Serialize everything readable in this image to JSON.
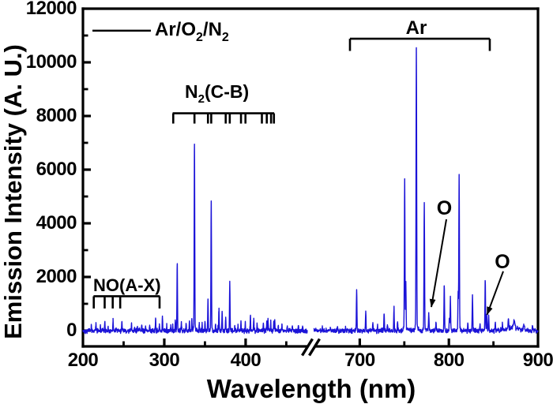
{
  "figure": {
    "background": "#ffffff",
    "axis_color": "#000000",
    "trace_color": "#1b13d8"
  },
  "chart_data": {
    "type": "line",
    "title": "",
    "xlabel": "Wavelength (nm)",
    "ylabel": "Emission Intensity (A. U.)",
    "x_unit": "nm",
    "ylim": [
      -530,
      12000
    ],
    "grid": false,
    "legend_position": "top-left-inside",
    "y_ticks_major": [
      0,
      2000,
      4000,
      6000,
      8000,
      10000
    ],
    "y_ticks_minor": [
      1000,
      3000,
      5000,
      7000,
      9000,
      11000
    ],
    "y_tick_labels": [
      {
        "value": 0,
        "label": "0"
      },
      {
        "value": 2000,
        "label": "2000"
      },
      {
        "value": 4000,
        "label": "4000"
      },
      {
        "value": 6000,
        "label": "6000"
      },
      {
        "value": 8000,
        "label": "8000"
      },
      {
        "value": 10000,
        "label": "10000"
      },
      {
        "value": 12000,
        "label": "12000"
      }
    ],
    "x_axis_break": {
      "left_segment_end_nm": 476,
      "right_segment_start_nm": 648
    },
    "x_segments": [
      {
        "range_nm": [
          200,
          475.9
        ],
        "ticks_major_nm": [
          300,
          400
        ],
        "ticks_minor_nm": [
          250,
          350,
          450
        ],
        "tick_labels": [
          {
            "value": 200,
            "label": "200"
          },
          {
            "value": 300,
            "label": "300"
          },
          {
            "value": 400,
            "label": "400"
          }
        ]
      },
      {
        "range_nm": [
          648.7,
          900
        ],
        "ticks_major_nm": [
          700,
          800
        ],
        "ticks_minor_nm": [
          750,
          850
        ],
        "tick_labels": [
          {
            "value": 700,
            "label": "700"
          },
          {
            "value": 800,
            "label": "800"
          },
          {
            "value": 900,
            "label": "900"
          }
        ]
      }
    ],
    "series": [
      {
        "name": "Ar/O2/N2",
        "color": "#1b13d8",
        "baseline_intensity": -5,
        "noise_amplitude": 105,
        "peaks_columns": [
          "wavelength_nm",
          "intensity",
          "sigma_nm"
        ],
        "peaks": [
          [
            210.4,
            180,
            0.38
          ],
          [
            215.9,
            240,
            0.38
          ],
          [
            221.5,
            150,
            0.38
          ],
          [
            226.9,
            330,
            0.38
          ],
          [
            231.0,
            150,
            0.38
          ],
          [
            237.0,
            390,
            0.4
          ],
          [
            247.9,
            340,
            0.4
          ],
          [
            259.6,
            250,
            0.4
          ],
          [
            267.0,
            160,
            0.38
          ],
          [
            272.2,
            220,
            0.38
          ],
          [
            277.0,
            150,
            0.38
          ],
          [
            282.0,
            180,
            0.38
          ],
          [
            289.3,
            430,
            0.4
          ],
          [
            294.0,
            220,
            0.38
          ],
          [
            297.7,
            500,
            0.4
          ],
          [
            303.0,
            220,
            0.38
          ],
          [
            308.0,
            180,
            0.38
          ],
          [
            310.4,
            200,
            0.38
          ],
          [
            313.6,
            380,
            0.4
          ],
          [
            315.9,
            2560,
            0.45
          ],
          [
            321.0,
            260,
            0.38
          ],
          [
            326.8,
            240,
            0.38
          ],
          [
            330.9,
            300,
            0.38
          ],
          [
            333.9,
            400,
            0.4
          ],
          [
            337.1,
            6880,
            0.5
          ],
          [
            343.0,
            320,
            0.38
          ],
          [
            346.5,
            280,
            0.38
          ],
          [
            350.0,
            300,
            0.38
          ],
          [
            353.7,
            1150,
            0.42
          ],
          [
            357.7,
            4800,
            0.48
          ],
          [
            363.0,
            250,
            0.38
          ],
          [
            367.2,
            800,
            0.42
          ],
          [
            371.1,
            740,
            0.42
          ],
          [
            375.5,
            500,
            0.4
          ],
          [
            380.5,
            1850,
            0.45
          ],
          [
            386.7,
            240,
            0.38
          ],
          [
            390.6,
            240,
            0.38
          ],
          [
            394.3,
            330,
            0.38
          ],
          [
            399.6,
            300,
            0.38
          ],
          [
            405.9,
            540,
            0.4
          ],
          [
            410.0,
            430,
            0.4
          ],
          [
            414.0,
            250,
            0.38
          ],
          [
            421.8,
            300,
            0.38
          ],
          [
            426.0,
            290,
            0.38
          ],
          [
            427.5,
            460,
            0.4
          ],
          [
            430.9,
            300,
            0.38
          ],
          [
            434.6,
            320,
            0.38
          ],
          [
            435.8,
            350,
            0.38
          ],
          [
            440.0,
            180,
            0.38
          ],
          [
            444.6,
            200,
            0.38
          ],
          [
            451.0,
            150,
            0.38
          ],
          [
            457.4,
            180,
            0.38
          ],
          [
            464.9,
            180,
            0.38
          ],
          [
            470.0,
            150,
            0.38
          ],
          [
            658.0,
            120,
            0.4
          ],
          [
            667.0,
            140,
            0.4
          ],
          [
            675.0,
            130,
            0.4
          ],
          [
            684.0,
            140,
            0.4
          ],
          [
            696.5,
            1480,
            0.45
          ],
          [
            706.7,
            700,
            0.42
          ],
          [
            714.7,
            320,
            0.4
          ],
          [
            720.0,
            170,
            0.4
          ],
          [
            727.3,
            630,
            0.42
          ],
          [
            731.0,
            240,
            0.4
          ],
          [
            738.4,
            880,
            0.42
          ],
          [
            742.4,
            340,
            0.4
          ],
          [
            750.4,
            5600,
            0.48
          ],
          [
            751.7,
            1800,
            0.42
          ],
          [
            763.5,
            10620,
            0.5
          ],
          [
            772.4,
            4780,
            0.48
          ],
          [
            777.4,
            620,
            0.45
          ],
          [
            785.5,
            290,
            0.4
          ],
          [
            794.8,
            1760,
            0.45
          ],
          [
            800.6,
            500,
            0.4
          ],
          [
            801.7,
            1240,
            0.42
          ],
          [
            810.4,
            1400,
            0.42
          ],
          [
            811.5,
            5750,
            0.48
          ],
          [
            821.3,
            260,
            0.4
          ],
          [
            826.5,
            1300,
            0.45
          ],
          [
            835.0,
            240,
            0.4
          ],
          [
            840.8,
            1890,
            0.45
          ],
          [
            842.5,
            600,
            0.4
          ],
          [
            844.6,
            580,
            0.42
          ],
          [
            852.1,
            300,
            0.4
          ],
          [
            860.0,
            200,
            0.4
          ],
          [
            866.8,
            430,
            0.45
          ],
          [
            871.0,
            90,
            12.0
          ],
          [
            873.0,
            260,
            1.5
          ],
          [
            884.0,
            160,
            1.0
          ],
          [
            894.0,
            130,
            0.8
          ]
        ]
      }
    ],
    "annotations": {
      "legend": {
        "label": "Ar/O2/N2",
        "label_parts": [
          {
            "text": "Ar/O",
            "subscript": false
          },
          {
            "text": "2",
            "subscript": true
          },
          {
            "text": "/N",
            "subscript": false
          },
          {
            "text": "2",
            "subscript": true
          }
        ],
        "line_nm": [
          211.7,
          283.5
        ],
        "line_intensity": 11180
      },
      "species_markers": [
        {
          "id": "no_ax",
          "label": "NO(A-X)",
          "comb_intensity": 1280,
          "comb_span_nm": [
            213.0,
            294.5
          ],
          "comb_ticks_nm": [
            213.3,
            226.7,
            236.6,
            245.8,
            294.2
          ],
          "tick_drop_intensity": 455
        },
        {
          "id": "n2_cb",
          "label": "N2(C-B)",
          "label_parts": [
            {
              "text": "N",
              "subscript": false
            },
            {
              "text": "2",
              "subscript": true
            },
            {
              "text": "(C-B)",
              "subscript": false
            }
          ],
          "comb_intensity": 8100,
          "comb_span_nm": [
            310.3,
            435.1
          ],
          "comb_ticks_nm": [
            311.0,
            337.1,
            353.7,
            357.7,
            375.5,
            380.5,
            394.3,
            399.8,
            420.0,
            426.0,
            431.3,
            434.8
          ],
          "tick_drop_intensity": 382
        }
      ],
      "ar_bracket": {
        "label": "Ar",
        "line_intensity": 10880,
        "span_nm": [
          689.0,
          845.9
        ],
        "end_tick_drop_intensity": 455
      },
      "o_arrows": [
        {
          "label": "O",
          "from_nm": 797.2,
          "from_intensity": 4150,
          "to_nm": 780.3,
          "to_intensity": 880
        },
        {
          "label": "O",
          "from_nm": 861.0,
          "from_intensity": 2210,
          "to_nm": 842.8,
          "to_intensity": 590
        }
      ]
    }
  }
}
